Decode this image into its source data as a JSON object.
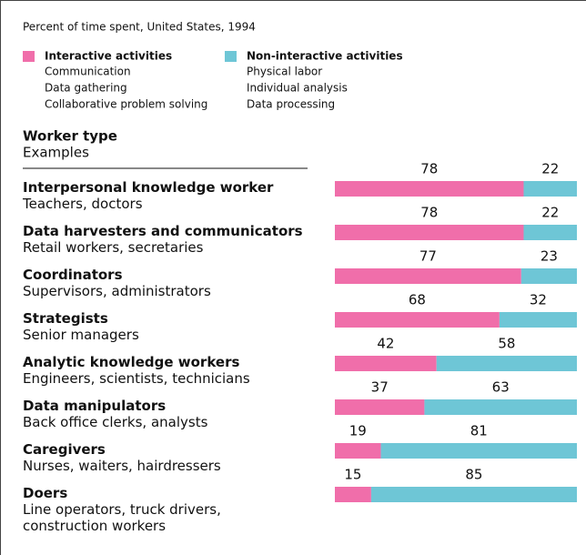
{
  "chart_data": {
    "type": "bar",
    "orientation": "horizontal",
    "stacked": true,
    "subtitle": "Percent of time spent, United States, 1994",
    "header": {
      "title": "Worker type",
      "subtitle": "Examples"
    },
    "categories": [
      "Interpersonal knowledge worker",
      "Data harvesters and communicators",
      "Coordinators",
      "Strategists",
      "Analytic knowledge workers",
      "Data manipulators",
      "Caregivers",
      "Doers"
    ],
    "category_examples": [
      "Teachers, doctors",
      "Retail workers, secretaries",
      "Supervisors, administrators",
      "Senior managers",
      "Engineers, scientists, technicians",
      "Back office clerks, analysts",
      "Nurses, waiters, hairdressers",
      "Line operators, truck drivers, construction workers"
    ],
    "series": [
      {
        "name": "Interactive activities",
        "color": "#f06eaa",
        "examples": [
          "Communication",
          "Data gathering",
          "Collaborative problem solving"
        ],
        "values": [
          78,
          78,
          77,
          68,
          42,
          37,
          19,
          15
        ]
      },
      {
        "name": "Non-interactive activities",
        "color": "#6ec6d6",
        "examples": [
          "Physical labor",
          "Individual analysis",
          "Data processing"
        ],
        "values": [
          22,
          22,
          23,
          32,
          58,
          63,
          81,
          85
        ]
      }
    ],
    "xlim": [
      0,
      100
    ]
  }
}
